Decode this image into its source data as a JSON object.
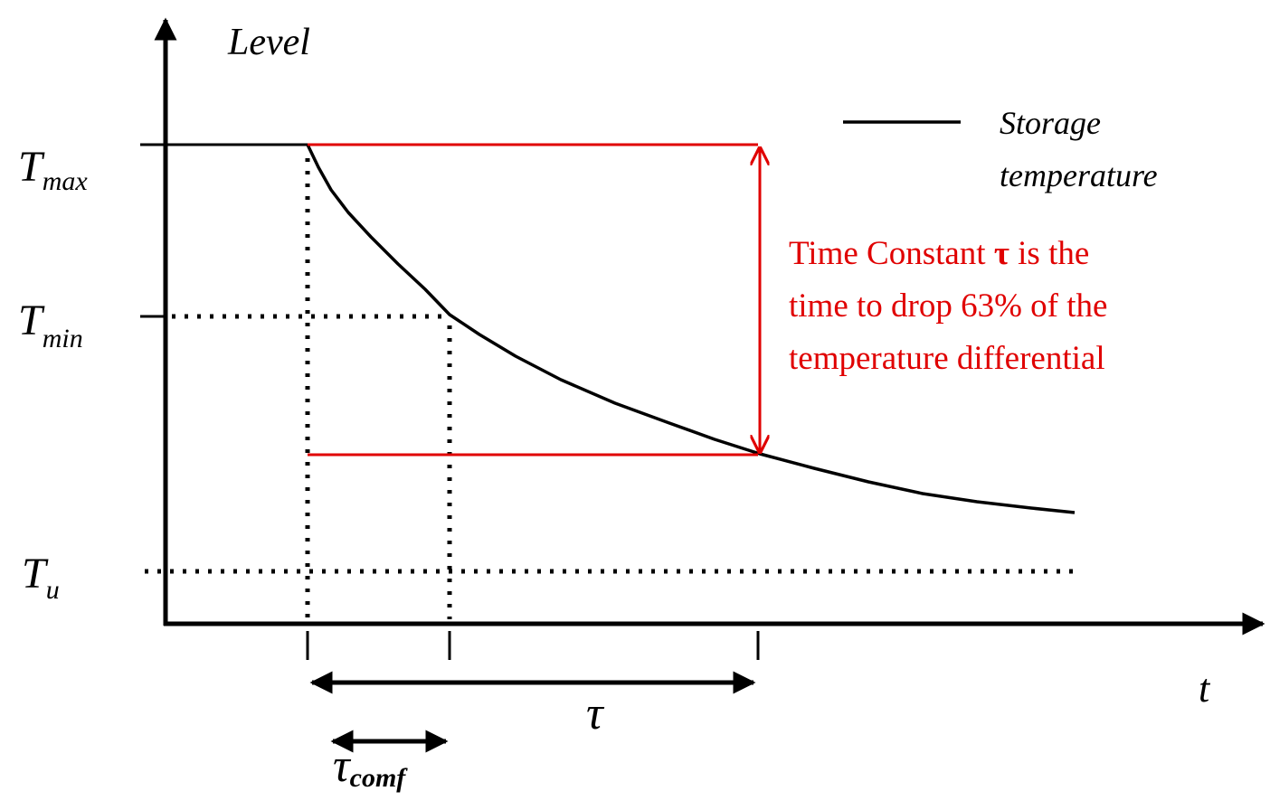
{
  "axis": {
    "y_label": "Level",
    "x_label": "t"
  },
  "levels": [
    {
      "main": "T",
      "sub": "max"
    },
    {
      "main": "T",
      "sub": "min"
    },
    {
      "main": "T",
      "sub": "u"
    }
  ],
  "legend": {
    "lines": [
      "Storage",
      "temperature"
    ]
  },
  "spans": [
    {
      "main": "τ"
    },
    {
      "main": "τ",
      "sub": "comf"
    }
  ],
  "annotation": {
    "lines": [
      [
        "Time Constant ",
        "τ",
        " is the"
      ],
      [
        "time to drop 63% of the"
      ],
      [
        "temperature differential"
      ]
    ]
  }
}
